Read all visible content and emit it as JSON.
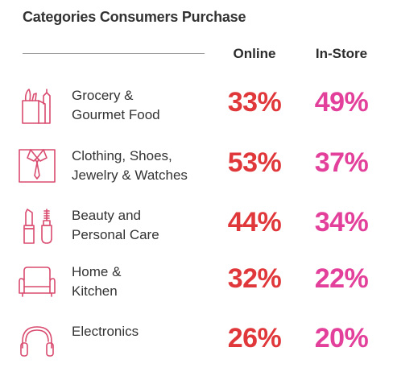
{
  "chart_data": {
    "type": "table",
    "title": "Categories Consumers Purchase",
    "columns": [
      "Online",
      "In-Store"
    ],
    "rows": [
      {
        "label_lines": [
          "Grocery &",
          "Gourmet Food"
        ],
        "icon": "grocery-bag-icon",
        "online": "33%",
        "instore": "49%"
      },
      {
        "label_lines": [
          "Clothing, Shoes,",
          "Jewelry & Watches"
        ],
        "icon": "shirt-tie-icon",
        "online": "53%",
        "instore": "37%"
      },
      {
        "label_lines": [
          "Beauty and",
          "Personal Care"
        ],
        "icon": "lipstick-icon",
        "online": "44%",
        "instore": "34%"
      },
      {
        "label_lines": [
          "Home &",
          "Kitchen"
        ],
        "icon": "armchair-icon",
        "online": "32%",
        "instore": "22%"
      },
      {
        "label_lines": [
          "Electronics"
        ],
        "icon": "headphones-icon",
        "online": "26%",
        "instore": "20%"
      }
    ],
    "colors": {
      "online": "#e0373a",
      "instore": "#e2409a",
      "icon": "#d94b6f"
    }
  }
}
